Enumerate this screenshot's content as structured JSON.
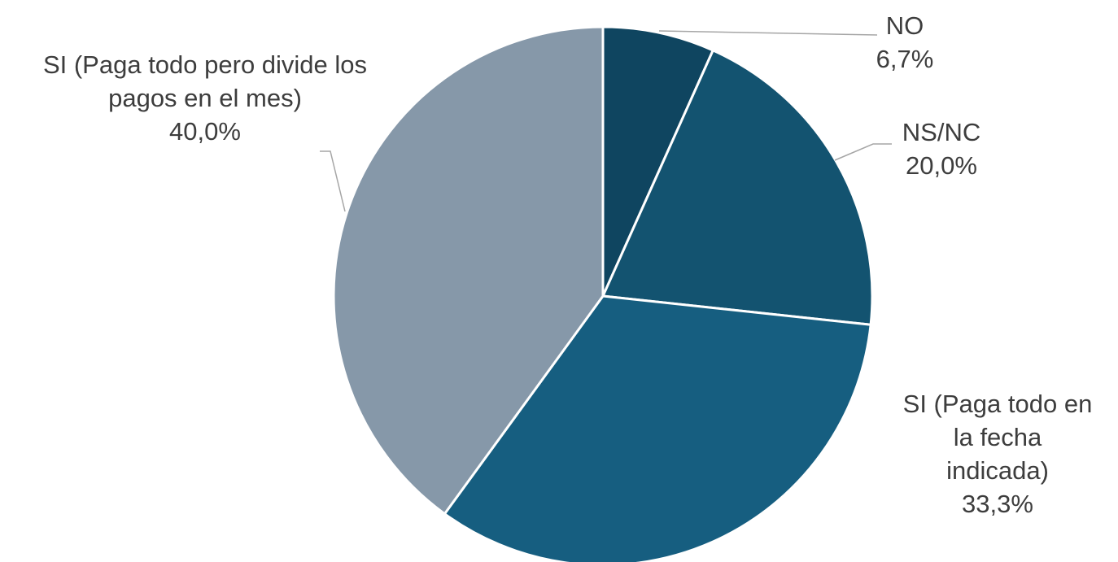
{
  "chart_data": {
    "type": "pie",
    "title": "",
    "start_angle_deg": 0,
    "direction": "clockwise",
    "slices": [
      {
        "label": "NO",
        "value": 6.7,
        "value_label": "6,7%",
        "color": "#0f4560",
        "label_lines": [
          "NO"
        ]
      },
      {
        "label": "NS/NC",
        "value": 20.0,
        "value_label": "20,0%",
        "color": "#135370",
        "label_lines": [
          "NS/NC"
        ]
      },
      {
        "label": "SI (Paga todo en la fecha indicada)",
        "value": 33.3,
        "value_label": "33,3%",
        "color": "#165e80",
        "label_lines": [
          "SI (Paga todo en",
          "la fecha",
          "indicada)"
        ]
      },
      {
        "label": "SI (Paga todo pero divide los pagos en el mes)",
        "value": 40.0,
        "value_label": "40,0%",
        "color": "#8698a9",
        "label_lines": [
          "SI (Paga todo pero divide los",
          "pagos en el mes)"
        ]
      }
    ],
    "legend": "none"
  }
}
